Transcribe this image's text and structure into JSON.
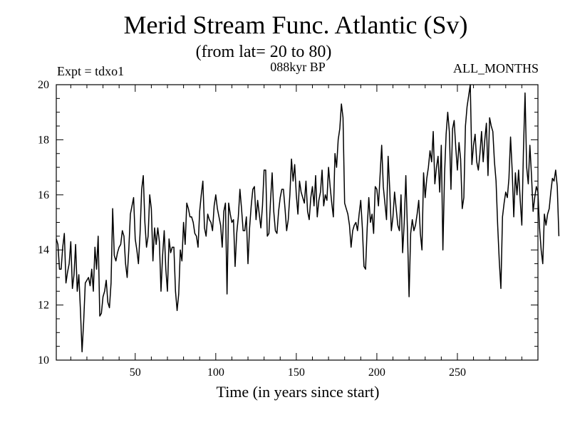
{
  "header": {
    "title": "Merid Stream Func. Atlantic (Sv)",
    "subtitle": "(from lat= 20 to 80)",
    "experiment": "Expt = tdxo1",
    "period": "088kyr BP",
    "months": "ALL_MONTHS"
  },
  "chart_data": {
    "type": "line",
    "title": "Merid Stream Func. Atlantic (Sv)",
    "subtitle": "(from lat= 20 to 80)",
    "xlabel": "Time (in years since start)",
    "ylabel": "",
    "xlim": [
      1,
      300
    ],
    "ylim": [
      10,
      20
    ],
    "xticks": [
      50,
      100,
      150,
      200,
      250
    ],
    "yticks": [
      10,
      12,
      14,
      16,
      18,
      20
    ],
    "grid": false,
    "series": [
      {
        "name": "Merid Stream Func. Atlantic",
        "x_start": 1,
        "x_step": 1,
        "values": [
          14.4,
          14.2,
          13.3,
          13.3,
          14.1,
          14.6,
          12.8,
          13.2,
          13.5,
          14.3,
          12.6,
          13.1,
          14.2,
          12.5,
          13.1,
          11.8,
          10.3,
          11.4,
          12.8,
          12.9,
          13.0,
          12.7,
          13.3,
          12.5,
          14.1,
          13.3,
          14.5,
          11.6,
          11.7,
          12.3,
          12.5,
          12.9,
          12.1,
          11.9,
          12.8,
          15.5,
          13.8,
          13.6,
          13.9,
          14.1,
          14.2,
          14.7,
          14.5,
          13.5,
          13.0,
          14.0,
          15.3,
          15.6,
          15.9,
          14.4,
          14.0,
          13.5,
          14.6,
          16.2,
          16.7,
          15.0,
          14.1,
          14.5,
          16.0,
          15.5,
          13.6,
          14.8,
          14.2,
          14.8,
          14.3,
          12.5,
          13.8,
          14.7,
          13.3,
          12.5,
          14.4,
          13.9,
          14.1,
          14.1,
          12.5,
          11.8,
          12.4,
          14.0,
          13.6,
          15.0,
          14.2,
          15.7,
          15.5,
          15.2,
          15.2,
          15.0,
          14.6,
          14.5,
          14.1,
          15.4,
          16.0,
          16.5,
          14.8,
          14.5,
          15.3,
          15.1,
          15.0,
          14.7,
          15.6,
          16.0,
          15.5,
          15.2,
          14.9,
          14.1,
          15.4,
          15.7,
          12.4,
          15.7,
          15.3,
          15.0,
          15.1,
          13.4,
          14.6,
          15.2,
          16.2,
          15.5,
          14.7,
          14.7,
          15.2,
          13.5,
          14.8,
          15.6,
          16.2,
          16.3,
          15.1,
          15.8,
          15.3,
          14.8,
          15.6,
          16.9,
          16.9,
          14.5,
          14.6,
          15.8,
          16.8,
          15.4,
          14.7,
          14.6,
          15.4,
          15.9,
          16.2,
          16.2,
          15.5,
          14.7,
          15.1,
          16.0,
          17.3,
          16.5,
          17.1,
          16.0,
          15.3,
          16.5,
          16.1,
          15.9,
          15.7,
          16.5,
          15.4,
          15.1,
          15.9,
          16.3,
          15.6,
          16.7,
          15.2,
          15.8,
          16.1,
          16.9,
          15.6,
          16.0,
          15.8,
          17.0,
          16.3,
          15.7,
          15.2,
          17.5,
          17.0,
          18.0,
          18.4,
          19.3,
          18.8,
          15.7,
          15.5,
          15.3,
          14.9,
          14.1,
          14.7,
          14.9,
          15.0,
          14.7,
          15.3,
          15.8,
          14.8,
          13.4,
          13.3,
          14.8,
          15.9,
          15.0,
          15.3,
          14.6,
          16.3,
          16.2,
          15.6,
          16.7,
          17.8,
          16.3,
          15.7,
          15.1,
          17.4,
          16.2,
          14.7,
          15.2,
          16.1,
          15.5,
          14.9,
          14.7,
          16.0,
          13.9,
          15.0,
          16.7,
          14.7,
          12.3,
          14.6,
          15.1,
          14.7,
          14.9,
          15.3,
          15.8,
          14.6,
          14.0,
          16.8,
          15.9,
          16.6,
          17.0,
          17.6,
          17.2,
          18.3,
          16.4,
          17.0,
          17.4,
          16.1,
          17.8,
          14.0,
          16.7,
          18.2,
          19.0,
          18.3,
          16.2,
          18.4,
          18.7,
          17.7,
          16.9,
          17.9,
          17.3,
          15.5,
          15.9,
          18.5,
          19.2,
          19.6,
          20.0,
          17.1,
          17.8,
          18.2,
          17.2,
          16.9,
          17.5,
          18.3,
          17.2,
          18.0,
          18.6,
          16.7,
          18.8,
          18.5,
          18.3,
          17.2,
          16.5,
          14.9,
          13.6,
          12.6,
          15.2,
          15.7,
          16.1,
          15.9,
          16.6,
          18.1,
          16.9,
          15.2,
          16.8,
          16.0,
          16.9,
          15.8,
          14.9,
          17.6,
          19.7,
          17.0,
          16.4,
          17.8,
          16.7,
          15.4,
          15.9,
          16.3,
          16.1,
          14.8,
          14.0,
          13.5,
          15.3,
          14.9,
          15.3,
          15.5,
          16.1,
          16.6,
          16.5,
          16.9,
          16.3,
          14.5
        ]
      }
    ]
  }
}
